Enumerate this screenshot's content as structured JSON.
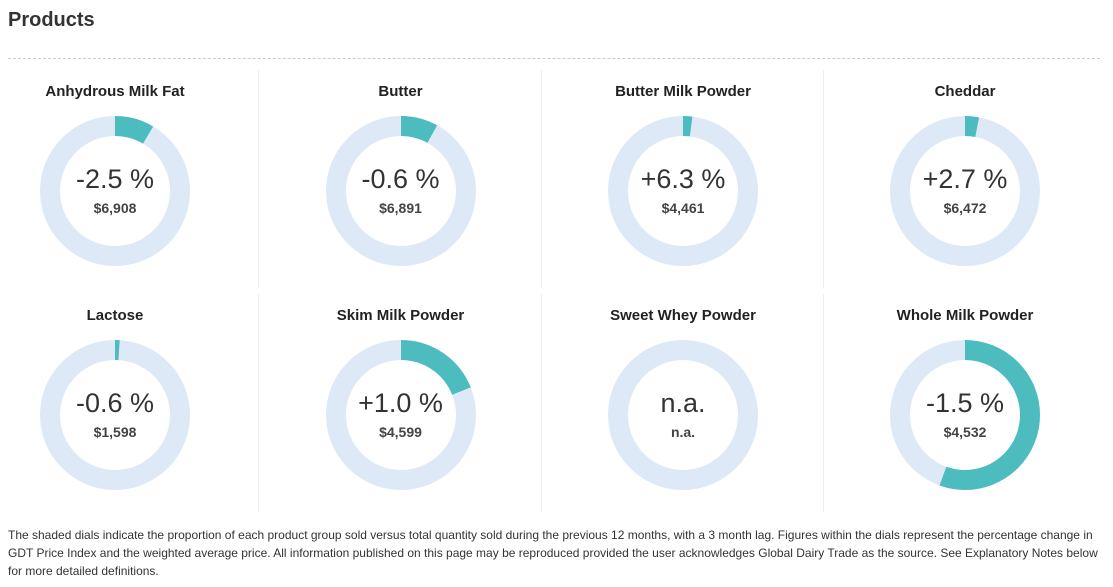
{
  "page": {
    "title": "Products",
    "footnote": "The shaded dials indicate the proportion of each product group sold versus total quantity sold during the previous 12 months, with a 3 month lag. Figures within the dials represent the percentage change in GDT Price Index and the weighted average price. All information published on this page may be reproduced provided the user acknowledges Global Dairy Trade as the source. See Explanatory Notes below for more detailed definitions."
  },
  "colors": {
    "track": "#dde9f7",
    "fill": "#4dbcbf"
  },
  "chart_data": {
    "type": "pie",
    "items": [
      {
        "name": "Anhydrous Milk Fat",
        "change": "-2.5 %",
        "price": "$6,908",
        "share": 0.085
      },
      {
        "name": "Butter",
        "change": "-0.6 %",
        "price": "$6,891",
        "share": 0.08
      },
      {
        "name": "Butter Milk Powder",
        "change": "+6.3 %",
        "price": "$4,461",
        "share": 0.02
      },
      {
        "name": "Cheddar",
        "change": "+2.7 %",
        "price": "$6,472",
        "share": 0.03
      },
      {
        "name": "Lactose",
        "change": "-0.6 %",
        "price": "$1,598",
        "share": 0.01
      },
      {
        "name": "Skim Milk Powder",
        "change": "+1.0 %",
        "price": "$4,599",
        "share": 0.19
      },
      {
        "name": "Sweet Whey Powder",
        "change": "n.a.",
        "price": "n.a.",
        "share": 0
      },
      {
        "name": "Whole Milk Powder",
        "change": "-1.5 %",
        "price": "$4,532",
        "share": 0.555
      }
    ]
  }
}
